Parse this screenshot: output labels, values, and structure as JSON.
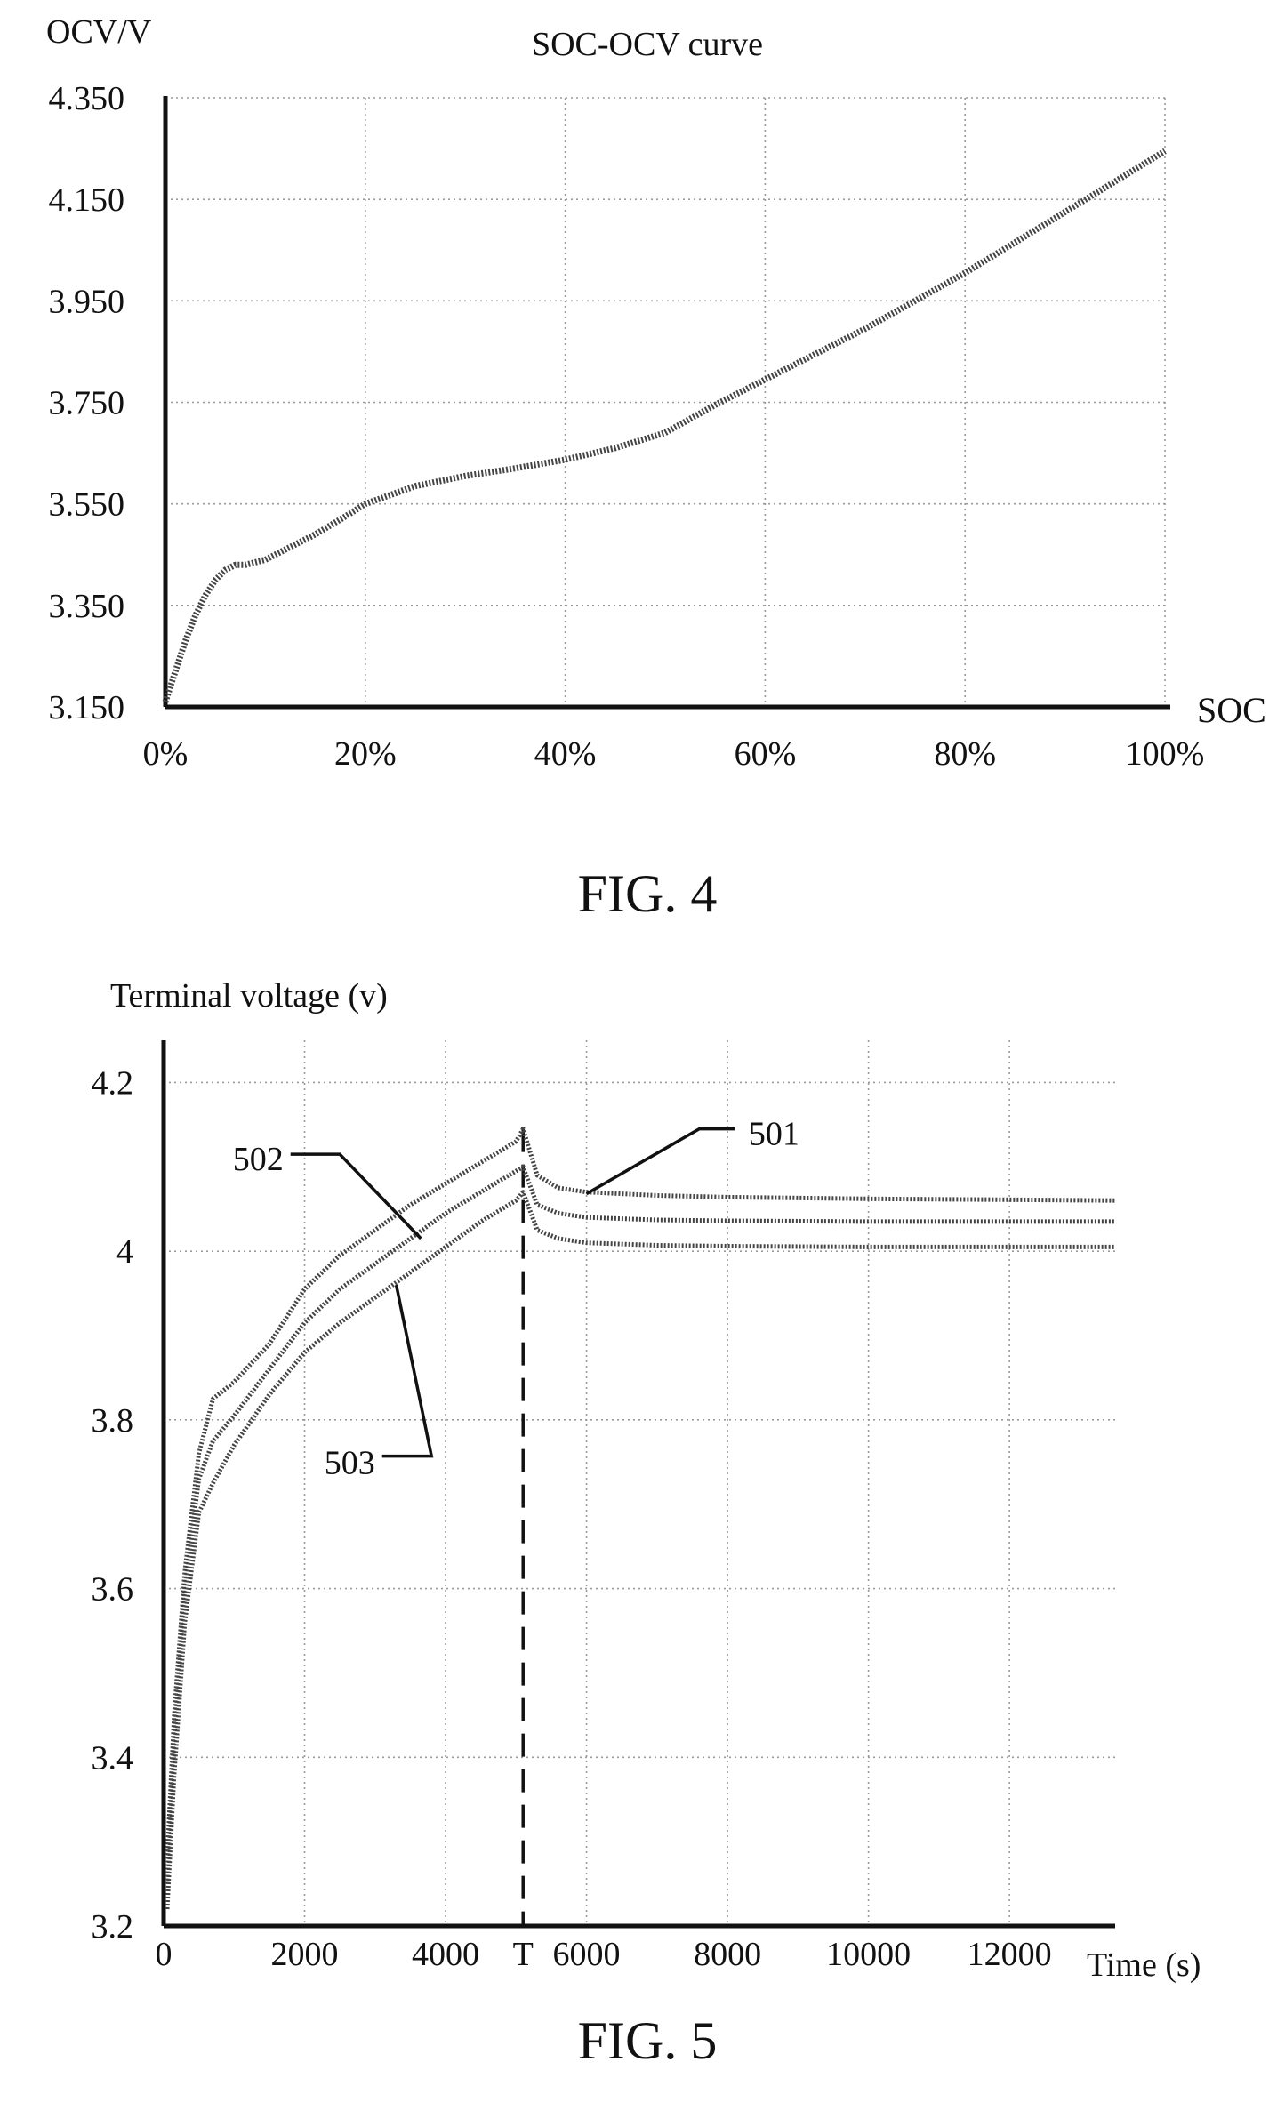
{
  "chart_data": [
    {
      "type": "line",
      "title": "SOC-OCV curve",
      "xlabel": "SOC",
      "ylabel": "OCV/V",
      "xlim": [
        0,
        100
      ],
      "ylim": [
        3.15,
        4.35
      ],
      "x_ticks": [
        "0%",
        "20%",
        "40%",
        "60%",
        "80%",
        "100%"
      ],
      "y_ticks": [
        "4.350",
        "4.150",
        "3.950",
        "3.750",
        "3.550",
        "3.350",
        "3.150"
      ],
      "grid": true,
      "figure_label": "FIG. 4",
      "series": [
        {
          "x": [
            0,
            1,
            2,
            3,
            4,
            5,
            6,
            7,
            8,
            9,
            10,
            12,
            15,
            18,
            20,
            25,
            30,
            35,
            40,
            45,
            50,
            55,
            60,
            65,
            70,
            75,
            80,
            85,
            90,
            95,
            100
          ],
          "y": [
            3.16,
            3.22,
            3.28,
            3.33,
            3.37,
            3.4,
            3.42,
            3.43,
            3.43,
            3.435,
            3.44,
            3.46,
            3.49,
            3.525,
            3.55,
            3.585,
            3.605,
            3.62,
            3.637,
            3.66,
            3.69,
            3.745,
            3.795,
            3.845,
            3.895,
            3.95,
            4.005,
            4.065,
            4.125,
            4.185,
            4.245
          ]
        }
      ]
    },
    {
      "type": "line",
      "title": "",
      "xlabel": "Time (s)",
      "ylabel": "Terminal voltage (v)",
      "xlim": [
        0,
        13500
      ],
      "ylim": [
        3.2,
        4.25
      ],
      "x_ticks": [
        "0",
        "2000",
        "4000",
        "T",
        "6000",
        "8000",
        "10000",
        "12000"
      ],
      "y_ticks": [
        "4.2",
        "4",
        "3.8",
        "3.6",
        "3.4",
        "3.2"
      ],
      "marker_T": {
        "label": "T",
        "x": 5100
      },
      "grid": true,
      "figure_label": "FIG. 5",
      "series": [
        {
          "name": "501",
          "x": [
            50,
            150,
            300,
            500,
            700,
            1000,
            1500,
            2000,
            2500,
            3000,
            3500,
            4000,
            4500,
            5000,
            5100,
            5300,
            5600,
            6000,
            7000,
            8000,
            10000,
            12000,
            13500
          ],
          "y": [
            3.28,
            3.45,
            3.62,
            3.76,
            3.825,
            3.845,
            3.89,
            3.955,
            3.995,
            4.025,
            4.055,
            4.08,
            4.105,
            4.13,
            4.145,
            4.09,
            4.075,
            4.07,
            4.066,
            4.064,
            4.062,
            4.061,
            4.06
          ]
        },
        {
          "name": "502",
          "x": [
            50,
            150,
            300,
            500,
            700,
            1000,
            1500,
            2000,
            2500,
            3000,
            3500,
            4000,
            4500,
            5000,
            5100,
            5300,
            5600,
            6000,
            7000,
            8000,
            10000,
            12000,
            13500
          ],
          "y": [
            3.25,
            3.42,
            3.6,
            3.73,
            3.775,
            3.805,
            3.86,
            3.915,
            3.955,
            3.985,
            4.015,
            4.045,
            4.07,
            4.095,
            4.1,
            4.055,
            4.045,
            4.04,
            4.037,
            4.036,
            4.035,
            4.035,
            4.035
          ]
        },
        {
          "name": "503",
          "x": [
            50,
            150,
            300,
            500,
            700,
            1000,
            1500,
            2000,
            2500,
            3000,
            3500,
            4000,
            4500,
            5000,
            5100,
            5300,
            5600,
            6000,
            7000,
            8000,
            10000,
            12000,
            13500
          ],
          "y": [
            3.22,
            3.38,
            3.56,
            3.69,
            3.725,
            3.77,
            3.83,
            3.88,
            3.915,
            3.945,
            3.975,
            4.005,
            4.035,
            4.06,
            4.07,
            4.025,
            4.015,
            4.01,
            4.007,
            4.006,
            4.005,
            4.005,
            4.005
          ]
        }
      ]
    }
  ]
}
